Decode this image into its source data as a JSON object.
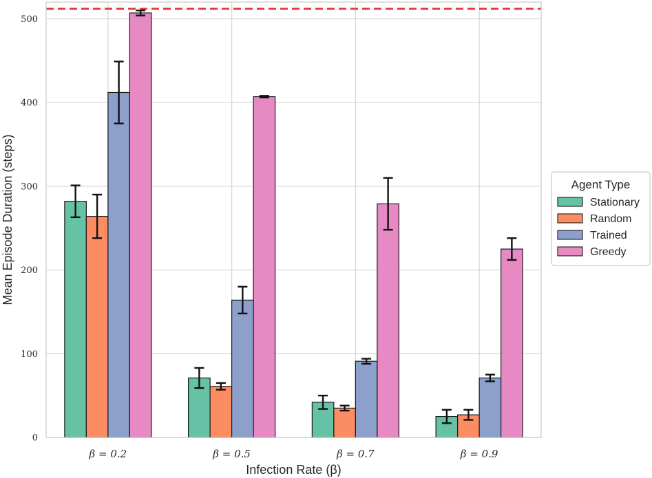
{
  "chart_data": {
    "type": "bar",
    "title": "",
    "xlabel": "Infection Rate (β)",
    "ylabel": "Mean Episode Duration (steps)",
    "ylim": [
      0,
      520
    ],
    "yticks": [
      0,
      100,
      200,
      300,
      400,
      500
    ],
    "categories": [
      "β = 0.2",
      "β = 0.5",
      "β = 0.7",
      "β = 0.9"
    ],
    "grid": true,
    "reference_line": {
      "value": 512,
      "color": "#e8322e",
      "style": "dashed"
    },
    "legend": {
      "title": "Agent Type",
      "placement": "outside-right"
    },
    "series": [
      {
        "name": "Stationary",
        "color": "#66c2a5",
        "values": [
          282,
          71,
          42,
          25
        ],
        "errors": [
          19,
          12,
          8,
          8
        ]
      },
      {
        "name": "Random",
        "color": "#fc8d62",
        "values": [
          264,
          61,
          35,
          27
        ],
        "errors": [
          26,
          4,
          3,
          6
        ]
      },
      {
        "name": "Trained",
        "color": "#8da0cb",
        "values": [
          412,
          164,
          91,
          71
        ],
        "errors": [
          37,
          16,
          3,
          4
        ]
      },
      {
        "name": "Greedy",
        "color": "#e78ac3",
        "values": [
          507,
          407,
          279,
          225
        ],
        "errors": [
          3,
          1,
          31,
          13
        ]
      }
    ]
  }
}
